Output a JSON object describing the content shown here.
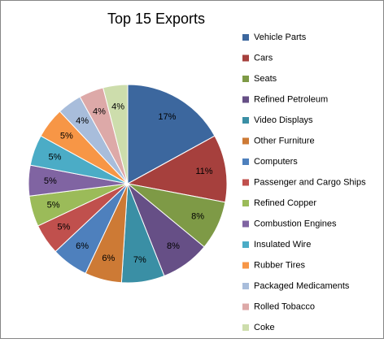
{
  "chart_data": {
    "type": "pie",
    "title": "Top 15 Exports",
    "categories": [
      "Vehicle Parts",
      "Cars",
      "Seats",
      "Refined Petroleum",
      "Video Displays",
      "Other Furniture",
      "Computers",
      "Passenger and Cargo Ships",
      "Refined Copper",
      "Combustion Engines",
      "Insulated Wire",
      "Rubber Tires",
      "Packaged Medicaments",
      "Rolled Tobacco",
      "Coke"
    ],
    "values": [
      17,
      11,
      8,
      8,
      7,
      6,
      6,
      5,
      5,
      5,
      5,
      5,
      4,
      4,
      4
    ],
    "value_labels": [
      "17%",
      "11%",
      "8%",
      "8%",
      "7%",
      "6%",
      "6%",
      "5%",
      "5%",
      "5%",
      "5%",
      "5%",
      "4%",
      "4%",
      "4%"
    ],
    "colors": [
      "#3C679E",
      "#A6403D",
      "#7E9A46",
      "#664F86",
      "#3A8FA5",
      "#CD7A35",
      "#4E80BD",
      "#C0504D",
      "#9BBB59",
      "#8064A2",
      "#4BACC6",
      "#F79646",
      "#A8BDDB",
      "#DDA9A8",
      "#CDDDAC"
    ],
    "legend": "right"
  }
}
